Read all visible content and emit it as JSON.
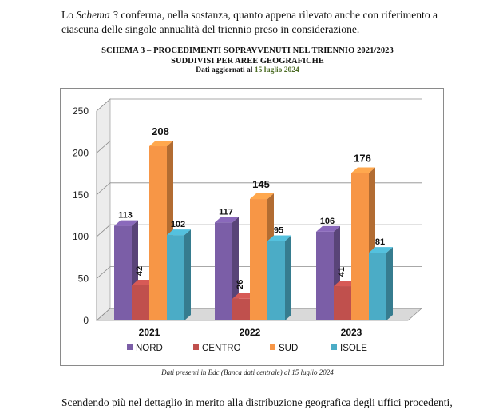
{
  "text": {
    "top_paragraph_prefix": "Lo ",
    "top_paragraph_italic": "Schema 3",
    "top_paragraph_rest": " conferma, nella sostanza, quanto appena rilevato anche con riferimento a ciascuna delle singole annualità del triennio preso in considerazione.",
    "bottom_paragraph": "Scendendo più nel dettaglio in merito alla distribuzione geografica degli uffici procedenti,"
  },
  "caption": {
    "line1": "SCHEMA 3 – PROCEDIMENTI SOPRAVVENUTI NEL TRIENNIO 2021/2023",
    "line2": "SUDDIVISI PER AREE GEOGRAFICHE",
    "line3_prefix": "Dati aggiornati al ",
    "line3_date": "15 luglio 2024"
  },
  "footnote": "Dati presenti in Bdc (Banca dati centrale) al 15 luglio 2024",
  "chart_data": {
    "type": "bar",
    "categories": [
      "2021",
      "2022",
      "2023"
    ],
    "series": [
      {
        "name": "NORD",
        "values": [
          113,
          117,
          106
        ],
        "color": "#7b5ea7"
      },
      {
        "name": "CENTRO",
        "values": [
          42,
          26,
          41
        ],
        "color": "#c0504d"
      },
      {
        "name": "SUD",
        "values": [
          208,
          145,
          176
        ],
        "color": "#f79646"
      },
      {
        "name": "ISOLE",
        "values": [
          102,
          95,
          81
        ],
        "color": "#4bacc6"
      }
    ],
    "ylim": [
      0,
      250
    ],
    "yticks": [
      0,
      50,
      100,
      150,
      200,
      250
    ],
    "grid": true,
    "legend": "bottom",
    "style": "3d"
  }
}
